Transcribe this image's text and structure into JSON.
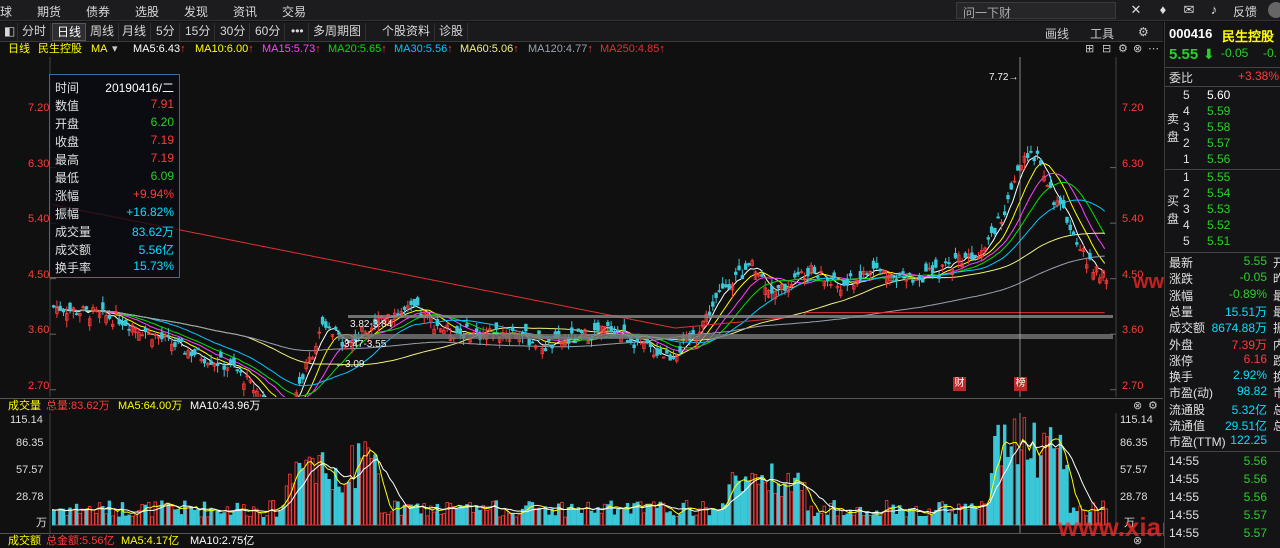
{
  "top_menu": [
    "球",
    "期货",
    "债券",
    "选股",
    "发现",
    "资讯",
    "交易"
  ],
  "search_placeholder": "问一下财",
  "top_right": {
    "feedback": "反馈",
    "icons": [
      "collapse-icon",
      "shirt-icon",
      "mail-icon",
      "bell-icon",
      "avatar-icon"
    ]
  },
  "period_tabs": [
    "分时",
    "日线",
    "周线",
    "月线",
    "5分",
    "15分",
    "30分",
    "60分",
    "•••",
    "多周期图",
    "个股资料",
    "诊股"
  ],
  "active_tab": "日线",
  "tools": {
    "draw": "画线",
    "tools": "工具"
  },
  "ma_bar": {
    "period": "日线",
    "stock": "民生控股",
    "ma_selector": "MA",
    "items": [
      {
        "label": "MA5:6.43",
        "color": "#ffffff"
      },
      {
        "label": "MA10:6.00",
        "color": "#ffff00"
      },
      {
        "label": "MA15:5.73",
        "color": "#ff40ff"
      },
      {
        "label": "MA20:5.65",
        "color": "#00e000"
      },
      {
        "label": "MA30:5.56",
        "color": "#00c8ff"
      },
      {
        "label": "MA60:5.06",
        "color": "#f0f080"
      },
      {
        "label": "MA120:4.77",
        "color": "#9aa0b0"
      },
      {
        "label": "MA250:4.85",
        "color": "#e03030"
      }
    ]
  },
  "info_panel": [
    {
      "k": "时间",
      "v": "20190416/二",
      "c": "wht"
    },
    {
      "k": "数值",
      "v": "7.91",
      "c": "red"
    },
    {
      "k": "开盘",
      "v": "6.20",
      "c": "grn"
    },
    {
      "k": "收盘",
      "v": "7.19",
      "c": "red"
    },
    {
      "k": "最高",
      "v": "7.19",
      "c": "red"
    },
    {
      "k": "最低",
      "v": "6.09",
      "c": "grn"
    },
    {
      "k": "涨幅",
      "v": "+9.94%",
      "c": "red"
    },
    {
      "k": "振幅",
      "v": "+16.82%",
      "c": "cyn"
    },
    {
      "k": "成交量",
      "v": "83.62万",
      "c": "cyn"
    },
    {
      "k": "成交额",
      "v": "5.56亿",
      "c": "cyn"
    },
    {
      "k": "换手率",
      "v": "15.73%",
      "c": "cyn"
    }
  ],
  "price_axis": [
    "7.20",
    "6.30",
    "5.40",
    "4.50",
    "3.60",
    "2.70"
  ],
  "annotations": {
    "high": "7.72→",
    "low": "←3.09",
    "gap1": "3.82-3.84",
    "gap2": "3.47-3.55",
    "badge_cai": "财",
    "badge_bang": "榜"
  },
  "volume_header": {
    "title": "成交量",
    "total": "总量:83.62万",
    "ma5": "MA5:64.00万",
    "ma10": "MA10:43.96万"
  },
  "volume_axis": [
    "115.14",
    "86.35",
    "57.57",
    "28.78",
    "万"
  ],
  "amount_header": {
    "title": "成交额",
    "total": "总金额:5.56亿",
    "ma5": "MA5:4.17亿",
    "ma10": "MA10:2.75亿"
  },
  "watermark": "www.xiarj.com",
  "quote": {
    "code": "000416",
    "name": "民生控股",
    "price": "5.55",
    "change": "-0.05",
    "pct": "-0.",
    "weibi_label": "委比",
    "weibi": "+3.38%",
    "sell_label": "卖盘",
    "buy_label": "买盘",
    "sell": [
      {
        "n": "5",
        "p": "5.60"
      },
      {
        "n": "4",
        "p": "5.59"
      },
      {
        "n": "3",
        "p": "5.58"
      },
      {
        "n": "2",
        "p": "5.57"
      },
      {
        "n": "1",
        "p": "5.56"
      }
    ],
    "buy": [
      {
        "n": "1",
        "p": "5.55"
      },
      {
        "n": "2",
        "p": "5.54"
      },
      {
        "n": "3",
        "p": "5.53"
      },
      {
        "n": "4",
        "p": "5.52"
      },
      {
        "n": "5",
        "p": "5.51"
      }
    ],
    "stats": [
      {
        "k": "最新",
        "v": "5.55",
        "c": "grn",
        "x": "开"
      },
      {
        "k": "涨跌",
        "v": "-0.05",
        "c": "grn",
        "x": "昨"
      },
      {
        "k": "涨幅",
        "v": "-0.89%",
        "c": "grn",
        "x": "最"
      },
      {
        "k": "总量",
        "v": "15.51万",
        "c": "cyn",
        "x": "最"
      },
      {
        "k": "成交额",
        "v": "8674.88万",
        "c": "cyn",
        "x": "振"
      },
      {
        "k": "外盘",
        "v": "7.39万",
        "c": "red",
        "x": "内"
      },
      {
        "k": "涨停",
        "v": "6.16",
        "c": "red",
        "x": "跌"
      },
      {
        "k": "换手",
        "v": "2.92%",
        "c": "cyn",
        "x": "换"
      },
      {
        "k": "市盈(动)",
        "v": "98.82",
        "c": "cyn",
        "x": "市"
      },
      {
        "k": "流通股",
        "v": "5.32亿",
        "c": "cyn",
        "x": "总"
      },
      {
        "k": "流通值",
        "v": "29.51亿",
        "c": "cyn",
        "x": "总"
      },
      {
        "k": "市盈(TTM)",
        "v": "122.25",
        "c": "cyn",
        "x": ""
      }
    ],
    "ticks": [
      {
        "t": "14:55",
        "p": "5.56"
      },
      {
        "t": "14:55",
        "p": "5.56"
      },
      {
        "t": "14:55",
        "p": "5.56"
      },
      {
        "t": "14:55",
        "p": "5.57"
      },
      {
        "t": "14:55",
        "p": "5.57"
      }
    ]
  },
  "chart_data": {
    "type": "candlestick",
    "stock": "民生控股",
    "period": "日线",
    "ylim": [
      2.7,
      8.0
    ],
    "selected_date": "20190416",
    "candles_note": "approximate daily OHLC estimated from image",
    "anchors": [
      [
        0,
        4.95
      ],
      [
        20,
        4.75
      ],
      [
        40,
        4.25
      ],
      [
        55,
        3.95
      ],
      [
        65,
        3.4
      ],
      [
        70,
        3.15
      ],
      [
        75,
        3.7
      ],
      [
        82,
        4.6
      ],
      [
        90,
        4.35
      ],
      [
        100,
        4.8
      ],
      [
        110,
        4.9
      ],
      [
        120,
        4.55
      ],
      [
        130,
        4.5
      ],
      [
        140,
        4.55
      ],
      [
        150,
        4.3
      ],
      [
        160,
        4.45
      ],
      [
        170,
        4.6
      ],
      [
        180,
        4.3
      ],
      [
        188,
        4.15
      ],
      [
        195,
        4.45
      ],
      [
        205,
        5.3
      ],
      [
        213,
        5.6
      ],
      [
        220,
        5.15
      ],
      [
        230,
        5.55
      ],
      [
        240,
        5.25
      ],
      [
        250,
        5.55
      ],
      [
        260,
        5.4
      ],
      [
        270,
        5.5
      ],
      [
        275,
        5.7
      ],
      [
        282,
        5.85
      ],
      [
        290,
        6.45
      ],
      [
        295,
        7.25
      ],
      [
        300,
        7.45
      ],
      [
        305,
        6.7
      ],
      [
        310,
        6.3
      ],
      [
        315,
        5.65
      ],
      [
        321,
        5.45
      ]
    ]
  }
}
